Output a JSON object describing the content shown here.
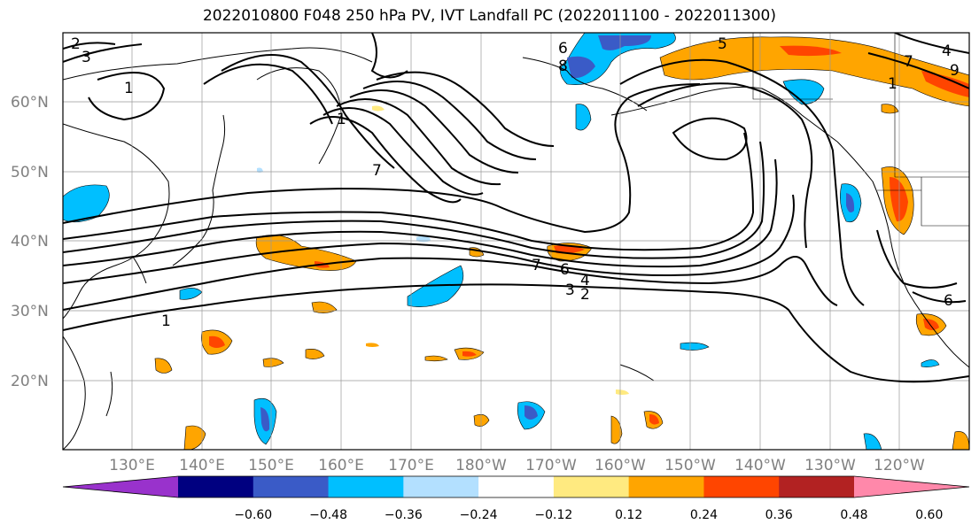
{
  "title": "2022010800 F048 250 hPa PV, IVT Landfall PC (2022011100 - 2022011300)",
  "map": {
    "lon_labels": [
      "130°E",
      "140°E",
      "150°E",
      "160°E",
      "170°E",
      "180°W",
      "170°W",
      "160°W",
      "150°W",
      "140°W",
      "130°W",
      "120°W"
    ],
    "lat_labels": [
      "60°N",
      "50°N",
      "40°N",
      "30°N",
      "20°N"
    ],
    "contour_labels": [
      "1",
      "2",
      "3",
      "4",
      "6",
      "7",
      "6",
      "8",
      "5",
      "7",
      "1",
      "4",
      "1",
      "3",
      "2",
      "1",
      "7",
      "9",
      "6"
    ],
    "fill_colors": {
      "strong_neg": "#3a5bc7",
      "mid_neg": "#00bfff",
      "weak_neg": "#b3e0ff",
      "weak_pos": "#ffea80",
      "mid_pos": "#ffa500",
      "strong_pos": "#ff4500"
    }
  },
  "colorbar": {
    "tick_labels": [
      "−0.60",
      "−0.48",
      "−0.36",
      "−0.24",
      "−0.12",
      "0.12",
      "0.24",
      "0.36",
      "0.48",
      "0.60"
    ],
    "colors": [
      "#9932cc",
      "#000080",
      "#3a5bc7",
      "#00bfff",
      "#b3e0ff",
      "#ffffff",
      "#ffea80",
      "#ffa500",
      "#ff4500",
      "#b22222",
      "#ff88aa"
    ]
  }
}
